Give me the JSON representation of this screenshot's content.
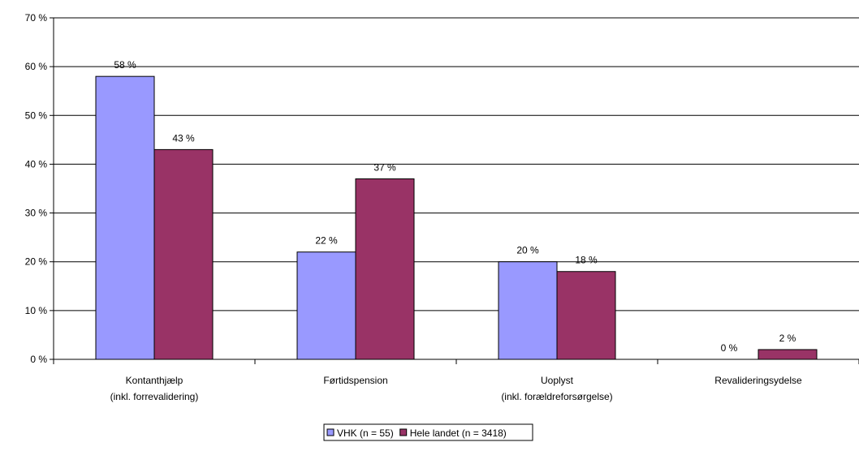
{
  "chart_data": {
    "type": "bar",
    "title": "",
    "xlabel": "",
    "ylabel": "",
    "ylim": [
      0,
      70
    ],
    "yticks": [
      0,
      10,
      20,
      30,
      40,
      50,
      60,
      70
    ],
    "ytick_labels": [
      "0 %",
      "10 %",
      "20 %",
      "30 %",
      "40 %",
      "50 %",
      "60 %",
      "70 %"
    ],
    "categories": [
      [
        "Kontanthjælp",
        "(inkl. forrevalidering)"
      ],
      [
        "Førtidspension"
      ],
      [
        "Uoplyst",
        "(inkl. forældreforsørgelse)"
      ],
      [
        "Revalideringsydelse"
      ]
    ],
    "series": [
      {
        "name": "VHK (n = 55)",
        "color": "#9999ff",
        "values": [
          58,
          22,
          20,
          0
        ],
        "labels": [
          "58 %",
          "22 %",
          "20 %",
          "0 %"
        ]
      },
      {
        "name": "Hele landet (n = 3418)",
        "color": "#993366",
        "values": [
          43,
          37,
          18,
          2
        ],
        "labels": [
          "43 %",
          "37 %",
          "18 %",
          "2 %"
        ]
      }
    ],
    "grid": true,
    "legend_position": "bottom"
  }
}
